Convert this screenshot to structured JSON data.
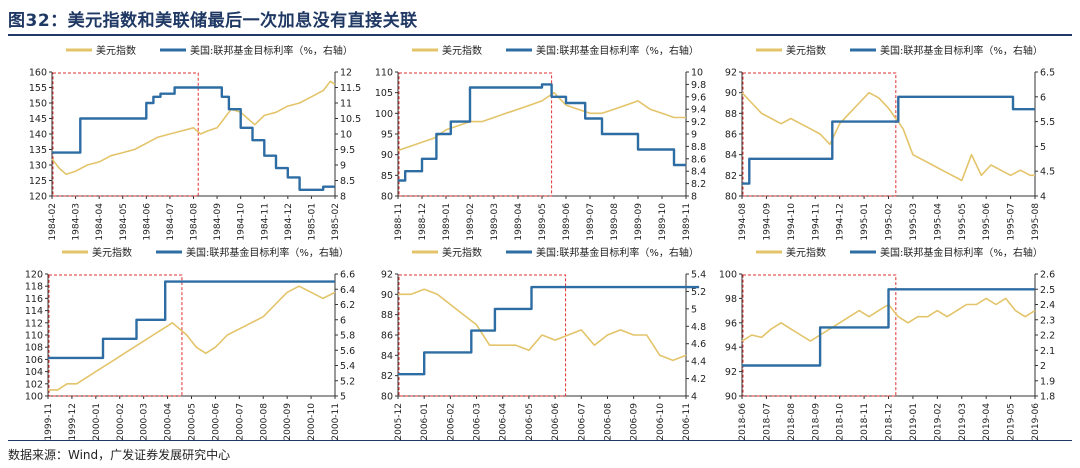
{
  "figure": {
    "title": "图32：美元指数和美联储最后一次加息没有直接关联",
    "source": "数据来源：Wind，广发证券发展研究中心"
  },
  "colors": {
    "dxy": "#e3c46a",
    "fed": "#2e6da4",
    "highlight": "#e03030",
    "axis": "#333333",
    "title": "#1f3864"
  },
  "chart_data": [
    {
      "type": "line",
      "title": "",
      "legend": [
        "美元指数",
        "美国:联邦基金目标利率（%，右轴）"
      ],
      "x": [
        "1984-02",
        "1984-03",
        "1984-04",
        "1984-05",
        "1984-06",
        "1984-07",
        "1984-08",
        "1984-09",
        "1984-10",
        "1984-11",
        "1984-12",
        "1985-01",
        "1985-02"
      ],
      "ylim": [
        120,
        160
      ],
      "yticks": [
        120,
        125,
        130,
        135,
        140,
        145,
        150,
        155,
        160
      ],
      "y2lim": [
        8,
        12
      ],
      "y2ticks": [
        8,
        8.5,
        9,
        9.5,
        10,
        10.5,
        11,
        11.5,
        12
      ],
      "highlight_x": [
        0,
        6.2
      ],
      "series": [
        {
          "name": "美元指数",
          "axis": "left",
          "x": [
            0,
            0.3,
            0.6,
            1,
            1.5,
            2,
            2.5,
            3,
            3.5,
            4,
            4.5,
            5,
            5.5,
            6,
            6.3,
            6.6,
            7,
            7.3,
            7.6,
            8,
            8.3,
            8.6,
            9,
            9.5,
            10,
            10.5,
            11,
            11.5,
            11.8,
            12
          ],
          "values": [
            132,
            129,
            127,
            128,
            130,
            131,
            133,
            134,
            135,
            137,
            139,
            140,
            141,
            142,
            140,
            141,
            142,
            145,
            148,
            147,
            145,
            143,
            146,
            147,
            149,
            150,
            152,
            154,
            157,
            156
          ]
        },
        {
          "name": "美国:联邦基金目标利率",
          "axis": "right",
          "step": true,
          "x": [
            0,
            1.2,
            1.2,
            4,
            4,
            4.3,
            4.3,
            4.6,
            4.6,
            5.2,
            5.2,
            6,
            6,
            7.2,
            7.2,
            7.5,
            7.5,
            8,
            8,
            8.5,
            8.5,
            9,
            9,
            9.5,
            9.5,
            10,
            10,
            10.5,
            10.5,
            11,
            11,
            11.5,
            11.5,
            12
          ],
          "values": [
            9.4,
            9.4,
            10.5,
            10.5,
            11,
            11,
            11.2,
            11.2,
            11.3,
            11.3,
            11.5,
            11.5,
            11.5,
            11.5,
            11.2,
            11.2,
            10.8,
            10.8,
            10.2,
            10.2,
            9.8,
            9.8,
            9.3,
            9.3,
            8.9,
            8.9,
            8.6,
            8.6,
            8.2,
            8.2,
            8.2,
            8.2,
            8.3,
            8.3
          ]
        }
      ]
    },
    {
      "type": "line",
      "title": "",
      "legend": [
        "美元指数",
        "美国:联邦基金目标利率（%，右轴）"
      ],
      "x": [
        "1988-11",
        "1988-12",
        "1989-01",
        "1989-02",
        "1989-03",
        "1989-04",
        "1989-05",
        "1989-06",
        "1989-07",
        "1989-08",
        "1989-09",
        "1989-10",
        "1989-11"
      ],
      "ylim": [
        80,
        110
      ],
      "yticks": [
        80,
        85,
        90,
        95,
        100,
        105,
        110
      ],
      "y2lim": [
        8,
        10
      ],
      "y2ticks": [
        8,
        8.2,
        8.4,
        8.6,
        8.8,
        9,
        9.2,
        9.4,
        9.6,
        9.8,
        10
      ],
      "highlight_x": [
        0,
        6.4
      ],
      "series": [
        {
          "name": "美元指数",
          "axis": "left",
          "x": [
            0,
            0.5,
            1,
            1.5,
            2,
            2.5,
            3,
            3.5,
            4,
            4.5,
            5,
            5.5,
            6,
            6.5,
            7,
            7.5,
            8,
            8.5,
            9,
            9.5,
            10,
            10.5,
            11,
            11.5,
            12
          ],
          "values": [
            91,
            92,
            93,
            94,
            96,
            97,
            98,
            98,
            99,
            100,
            101,
            102,
            103,
            105,
            102,
            101,
            100,
            100,
            101,
            102,
            103,
            101,
            100,
            99,
            99
          ]
        },
        {
          "name": "美国:联邦基金目标利率",
          "axis": "right",
          "step": true,
          "x": [
            0,
            0.3,
            0.3,
            1,
            1,
            1.6,
            1.6,
            2.2,
            2.2,
            3,
            3,
            6,
            6,
            6.4,
            6.4,
            7,
            7,
            7.8,
            7.8,
            8.5,
            8.5,
            10,
            10,
            11.5,
            11.5,
            12
          ],
          "values": [
            8.25,
            8.25,
            8.4,
            8.4,
            8.6,
            8.6,
            9,
            9,
            9.2,
            9.2,
            9.75,
            9.75,
            9.8,
            9.8,
            9.6,
            9.6,
            9.5,
            9.5,
            9.25,
            9.25,
            9,
            9,
            8.75,
            8.75,
            8.5,
            8.5
          ]
        }
      ]
    },
    {
      "type": "line",
      "title": "",
      "legend": [
        "美元指数",
        "美国:联邦基金目标利率（%，右轴）"
      ],
      "x": [
        "1994-08",
        "1994-09",
        "1994-10",
        "1994-11",
        "1994-12",
        "1995-01",
        "1995-02",
        "1995-03",
        "1995-04",
        "1995-05",
        "1995-06",
        "1995-07",
        "1995-08"
      ],
      "ylim": [
        80,
        92
      ],
      "yticks": [
        80,
        82,
        84,
        86,
        88,
        90,
        92
      ],
      "y2lim": [
        4,
        6.5
      ],
      "y2ticks": [
        4,
        4.5,
        5,
        5.5,
        6,
        6.5
      ],
      "highlight_x": [
        0,
        6.3
      ],
      "series": [
        {
          "name": "美元指数",
          "axis": "left",
          "x": [
            0,
            0.4,
            0.8,
            1.2,
            1.6,
            2,
            2.4,
            2.8,
            3.2,
            3.6,
            4,
            4.4,
            4.8,
            5.2,
            5.6,
            6,
            6.3,
            6.6,
            7,
            7.4,
            7.8,
            8.2,
            8.6,
            9,
            9.4,
            9.8,
            10.2,
            10.6,
            11,
            11.4,
            11.8,
            12
          ],
          "values": [
            90,
            89,
            88,
            87.5,
            87,
            87.5,
            87,
            86.5,
            86,
            85,
            87,
            88,
            89,
            90,
            89.5,
            88.5,
            87.5,
            86.5,
            84,
            83.5,
            83,
            82.5,
            82,
            81.5,
            84,
            82,
            83,
            82.5,
            82,
            82.5,
            82,
            82
          ]
        },
        {
          "name": "美国:联邦基金目标利率",
          "axis": "right",
          "step": true,
          "x": [
            0,
            0.3,
            0.3,
            0.8,
            0.8,
            3.7,
            3.7,
            6.4,
            6.4,
            11.1,
            11.1,
            12
          ],
          "values": [
            4.25,
            4.25,
            4.75,
            4.75,
            4.75,
            4.75,
            5.5,
            5.5,
            6,
            6,
            5.75,
            5.75
          ]
        }
      ]
    },
    {
      "type": "line",
      "title": "",
      "legend": [
        "美元指数",
        "美国:联邦基金目标利率（%，右轴）"
      ],
      "x": [
        "1999-11",
        "1999-12",
        "2000-01",
        "2000-02",
        "2000-03",
        "2000-04",
        "2000-05",
        "2000-06",
        "2000-07",
        "2000-08",
        "2000-09",
        "2000-10",
        "2000-11"
      ],
      "ylim": [
        100,
        120
      ],
      "yticks": [
        100,
        102,
        104,
        106,
        108,
        110,
        112,
        114,
        116,
        118,
        120
      ],
      "y2lim": [
        5,
        6.6
      ],
      "y2ticks": [
        5,
        5.2,
        5.4,
        5.6,
        5.8,
        6,
        6.2,
        6.4,
        6.6
      ],
      "highlight_x": [
        0,
        5.6
      ],
      "series": [
        {
          "name": "美元指数",
          "axis": "left",
          "x": [
            0,
            0.4,
            0.8,
            1.2,
            1.6,
            2,
            2.4,
            2.8,
            3.2,
            3.6,
            4,
            4.4,
            4.8,
            5.2,
            5.5,
            5.8,
            6.2,
            6.6,
            7,
            7.5,
            8,
            8.5,
            9,
            9.5,
            10,
            10.5,
            11,
            11.5,
            12
          ],
          "values": [
            101,
            101,
            102,
            102,
            103,
            104,
            105,
            106,
            107,
            108,
            109,
            110,
            111,
            112,
            111,
            110,
            108,
            107,
            108,
            110,
            111,
            112,
            113,
            115,
            117,
            118,
            117,
            116,
            117
          ]
        },
        {
          "name": "美国:联邦基金目标利率",
          "axis": "right",
          "step": true,
          "x": [
            0,
            2.3,
            2.3,
            3.7,
            3.7,
            4.9,
            4.9,
            5.6,
            5.6,
            12
          ],
          "values": [
            5.5,
            5.5,
            5.75,
            5.75,
            6,
            6,
            6.5,
            6.5,
            6.5,
            6.5
          ]
        }
      ]
    },
    {
      "type": "line",
      "title": "",
      "legend": [
        "美元指数",
        "美国:联邦基金目标利率（%，右轴）"
      ],
      "x": [
        "2005-12",
        "2006-01",
        "2006-02",
        "2006-03",
        "2006-04",
        "2006-05",
        "2006-06",
        "2006-07",
        "2006-08",
        "2006-09",
        "2006-10",
        "2006-11"
      ],
      "ylim": [
        80,
        92
      ],
      "yticks": [
        80,
        82,
        84,
        86,
        88,
        90,
        92
      ],
      "y2lim": [
        4,
        5.4
      ],
      "y2ticks": [
        4,
        4.2,
        4.4,
        4.6,
        4.8,
        5,
        5.2,
        5.4
      ],
      "highlight_x": [
        0,
        6.4
      ],
      "series": [
        {
          "name": "美元指数",
          "axis": "left",
          "x": [
            0,
            0.5,
            1,
            1.5,
            2,
            2.5,
            3,
            3.5,
            4,
            4.5,
            5,
            5.5,
            6,
            6.5,
            7,
            7.5,
            8,
            8.5,
            9,
            9.5,
            10,
            10.5,
            11
          ],
          "values": [
            90,
            90,
            90.5,
            90,
            89,
            88,
            87,
            85,
            85,
            85,
            84.5,
            86,
            85.5,
            86,
            86.5,
            85,
            86,
            86.5,
            86,
            86,
            84,
            83.5,
            84
          ]
        },
        {
          "name": "美国:联邦基金目标利率",
          "axis": "right",
          "step": true,
          "x": [
            0,
            1,
            1,
            2.8,
            2.8,
            3.7,
            3.7,
            5.1,
            5.1,
            6,
            6,
            11.5
          ],
          "values": [
            4.25,
            4.25,
            4.5,
            4.5,
            4.75,
            4.75,
            5,
            5,
            5.25,
            5.25,
            5.25,
            5.25
          ]
        }
      ]
    },
    {
      "type": "line",
      "title": "",
      "legend": [
        "美元指数",
        "美国:联邦基金目标利率（%，右轴）"
      ],
      "x": [
        "2018-06",
        "2018-07",
        "2018-08",
        "2018-09",
        "2018-10",
        "2018-11",
        "2018-12",
        "2019-01",
        "2019-02",
        "2019-03",
        "2019-04",
        "2019-05",
        "2019-06"
      ],
      "ylim": [
        90,
        100
      ],
      "yticks": [
        90,
        92,
        94,
        96,
        98,
        100
      ],
      "y2lim": [
        1.8,
        2.6
      ],
      "y2ticks": [
        1.8,
        1.9,
        2,
        2.1,
        2.2,
        2.3,
        2.4,
        2.5,
        2.6
      ],
      "highlight_x": [
        0,
        6.3
      ],
      "series": [
        {
          "name": "美元指数",
          "axis": "left",
          "x": [
            0,
            0.4,
            0.8,
            1.2,
            1.6,
            2,
            2.4,
            2.8,
            3.2,
            3.6,
            4,
            4.4,
            4.8,
            5.2,
            5.6,
            6,
            6.4,
            6.8,
            7.2,
            7.6,
            8,
            8.4,
            8.8,
            9.2,
            9.6,
            10,
            10.4,
            10.8,
            11.2,
            11.6,
            12
          ],
          "values": [
            94.5,
            95,
            94.8,
            95.5,
            96,
            95.5,
            95,
            94.5,
            95,
            95.5,
            96,
            96.5,
            97,
            96.5,
            97,
            97.5,
            96.5,
            96,
            96.5,
            96.5,
            97,
            96.5,
            97,
            97.5,
            97.5,
            98,
            97.5,
            98,
            97,
            96.5,
            97
          ]
        },
        {
          "name": "美国:联邦基金目标利率",
          "axis": "right",
          "step": true,
          "x": [
            0,
            3.2,
            3.2,
            6,
            6,
            12
          ],
          "values": [
            2,
            2,
            2.25,
            2.25,
            2.5,
            2.5
          ]
        }
      ]
    }
  ]
}
